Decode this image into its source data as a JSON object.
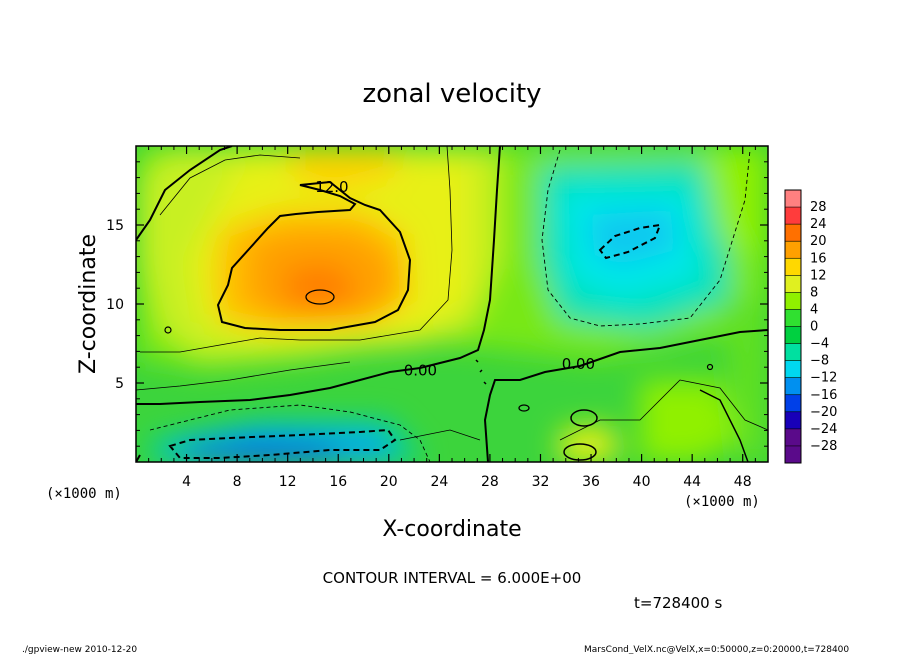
{
  "chart_data": {
    "type": "heatmap",
    "title": "zonal velocity",
    "xlabel": "X-coordinate",
    "ylabel": "Z-coordinate",
    "x_unit": "(×1000 m)",
    "z_unit": "(×1000 m)",
    "xlim": [
      0,
      50
    ],
    "ylim": [
      0,
      20
    ],
    "x_ticks": [
      4,
      8,
      12,
      16,
      20,
      24,
      28,
      32,
      36,
      40,
      44,
      48
    ],
    "y_ticks": [
      5,
      10,
      15
    ],
    "colorbar_levels": [
      28,
      24,
      20,
      16,
      12,
      8,
      4,
      0,
      -4,
      -8,
      -12,
      -16,
      -20,
      -24,
      -28
    ],
    "colorbar_labels": [
      "28",
      "24",
      "20",
      "16",
      "12",
      "8",
      "4",
      "0",
      "−4",
      "−8",
      "−12",
      "−16",
      "−20",
      "−24",
      "−28"
    ],
    "contour_interval": "CONTOUR INTERVAL = 6.000E+00",
    "contour_labels": [
      {
        "text": "12.0",
        "x": 15.5,
        "y": 17.2
      },
      {
        "text": "0.00",
        "x": 22.5,
        "y": 5.6
      },
      {
        "text": "0.00",
        "x": 35.0,
        "y": 6.0
      }
    ],
    "time_label": "t=728400 s",
    "footer_left": "./gpview-new  2010-12-20",
    "footer_right": "MarsCond_VelX.nc@VelX,x=0:50000,z=0:20000,t=728400",
    "features": [
      {
        "kind": "max",
        "x": 14.5,
        "z": 10.5,
        "value": 19
      },
      {
        "kind": "min",
        "x": 40.5,
        "z": 14.0,
        "value": -13
      },
      {
        "kind": "min",
        "x": 10.5,
        "z": 1.0,
        "value": -16
      }
    ]
  },
  "colors": {
    "scale": [
      "#5a0a8a",
      "#1800b8",
      "#0040e8",
      "#0090f0",
      "#00d8f0",
      "#00e0a0",
      "#00d040",
      "#30e030",
      "#90f000",
      "#e0f020",
      "#ffd800",
      "#ffa000",
      "#ff7000",
      "#ff3c3c",
      "#ff8080"
    ]
  }
}
